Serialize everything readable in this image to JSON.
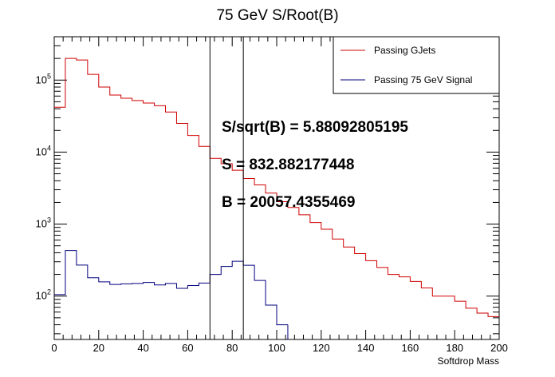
{
  "chart_data": {
    "type": "line",
    "title": "75 GeV S/Root(B)",
    "xlabel": "Softdrop Mass",
    "ylabel": "",
    "xlim": [
      0,
      200
    ],
    "ylim": [
      25,
      400000
    ],
    "y_scale": "log",
    "grid": false,
    "legend_position": "top-right",
    "x_ticks": [
      0,
      20,
      40,
      60,
      80,
      100,
      120,
      140,
      160,
      180,
      200
    ],
    "x_tick_labels": [
      "0",
      "20",
      "40",
      "60",
      "80",
      "100",
      "120",
      "140",
      "160",
      "180",
      "200"
    ],
    "y_ticks": [
      {
        "value": 100,
        "base": "10",
        "exp": "2"
      },
      {
        "value": 1000,
        "base": "10",
        "exp": "3"
      },
      {
        "value": 10000,
        "base": "10",
        "exp": "4"
      },
      {
        "value": 100000,
        "base": "10",
        "exp": "5"
      }
    ],
    "bin_edges": [
      0,
      5,
      10,
      15,
      20,
      25,
      30,
      35,
      40,
      45,
      50,
      55,
      60,
      65,
      70,
      75,
      80,
      85,
      90,
      95,
      100,
      105,
      110,
      115,
      120,
      125,
      130,
      135,
      140,
      145,
      150,
      155,
      160,
      165,
      170,
      175,
      180,
      185,
      190,
      195,
      200
    ],
    "series": [
      {
        "name": "Passing GJets",
        "color": "#d00000",
        "values": [
          42000,
          200000,
          190000,
          120000,
          80000,
          62000,
          56000,
          52000,
          48000,
          44000,
          36000,
          25000,
          17000,
          12000,
          8200,
          6900,
          5600,
          4300,
          3500,
          2700,
          2050,
          1700,
          1350,
          1050,
          850,
          620,
          480,
          390,
          310,
          250,
          200,
          185,
          160,
          130,
          100,
          100,
          85,
          68,
          58,
          52
        ]
      },
      {
        "name": "Passing 75 GeV Signal",
        "color": "#00007f",
        "values": [
          105,
          430,
          270,
          180,
          158,
          145,
          148,
          150,
          155,
          143,
          150,
          128,
          140,
          152,
          200,
          258,
          305,
          268,
          165,
          75,
          40,
          null,
          null,
          null,
          null,
          null,
          null,
          null,
          null,
          null,
          null,
          null,
          null,
          null,
          null,
          null,
          null,
          null,
          null,
          null
        ]
      }
    ],
    "cut_lines_x": [
      70,
      85
    ],
    "annotations": [
      "S/sqrt(B) = 5.88092805195",
      "S = 832.882177448",
      "B = 20057.4355469"
    ]
  }
}
